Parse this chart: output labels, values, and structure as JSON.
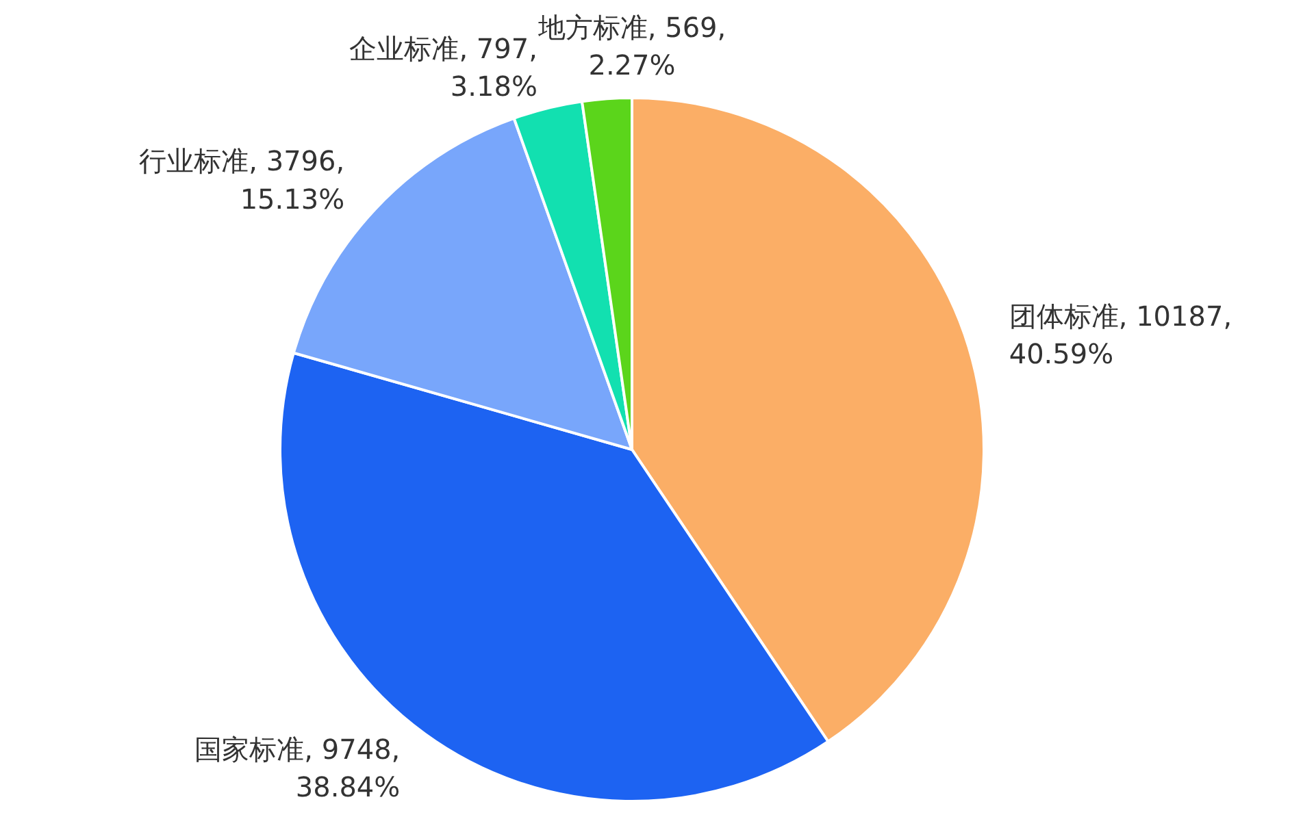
{
  "chart_data": {
    "type": "pie",
    "categories": [
      "团体标准",
      "国家标准",
      "行业标准",
      "企业标准",
      "地方标准"
    ],
    "values": [
      10187,
      9748,
      3796,
      797,
      569
    ],
    "value_labels": [
      "10187, 40.59%",
      "9748, 38.84%",
      "3796, 15.13%",
      "797, 3.18%",
      "569, 2.27%"
    ],
    "colors": [
      "#fbae66",
      "#1d63f2",
      "#78a6fb",
      "#12e0b0",
      "#5bd51b"
    ],
    "legend": false
  }
}
